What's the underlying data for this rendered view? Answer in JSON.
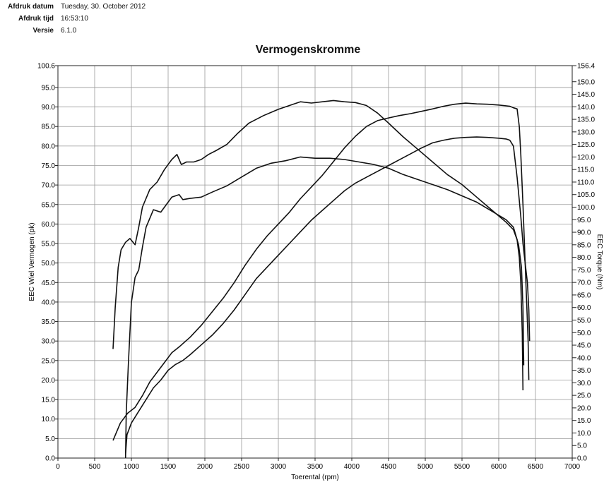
{
  "header": {
    "rows": [
      {
        "label": "Afdruk datum",
        "value": "Tuesday, 30. October 2012"
      },
      {
        "label": "Afdruk tijd",
        "value": "16:53:10"
      },
      {
        "label": "Versie",
        "value": "6.1.0"
      }
    ]
  },
  "chart_data": {
    "type": "line",
    "title": "Vermogenskromme",
    "xlabel": "Toerental (rpm)",
    "ylabel": "EEC Wiel Vermogen (pk)",
    "y2label": "EEC Torque (Nm)",
    "xlim": [
      0,
      7000
    ],
    "ylim": [
      0,
      100.6
    ],
    "y2lim": [
      0,
      156.4
    ],
    "grid": true,
    "xticks": [
      "0",
      "500",
      "1000",
      "1500",
      "2000",
      "2500",
      "3000",
      "3500",
      "4000",
      "4500",
      "5000",
      "5500",
      "6000",
      "6500",
      "7000"
    ],
    "yticks": [
      "0.0",
      "5.0",
      "10.0",
      "15.0",
      "20.0",
      "25.0",
      "30.0",
      "35.0",
      "40.0",
      "45.0",
      "50.0",
      "55.0",
      "60.0",
      "65.0",
      "70.0",
      "75.0",
      "80.0",
      "85.0",
      "90.0",
      "95.0",
      "100.6"
    ],
    "y2ticks": [
      "0.0",
      "5.0",
      "10.0",
      "15.0",
      "20.0",
      "25.0",
      "30.0",
      "35.0",
      "40.0",
      "45.0",
      "50.0",
      "55.0",
      "60.0",
      "65.0",
      "70.0",
      "75.0",
      "80.0",
      "85.0",
      "90.0",
      "95.0",
      "100.0",
      "105.0",
      "110.0",
      "115.0",
      "120.0",
      "125.0",
      "130.0",
      "135.0",
      "140.0",
      "145.0",
      "150.0",
      "156.4"
    ],
    "series": [
      {
        "axis": "y2",
        "color": "#111111",
        "points": [
          [
            750,
            43.5
          ],
          [
            780,
            60
          ],
          [
            820,
            76
          ],
          [
            860,
            83
          ],
          [
            920,
            86
          ],
          [
            980,
            87.5
          ],
          [
            1050,
            85
          ],
          [
            1100,
            92
          ],
          [
            1150,
            100
          ],
          [
            1250,
            107
          ],
          [
            1350,
            110
          ],
          [
            1450,
            115
          ],
          [
            1550,
            119
          ],
          [
            1620,
            121
          ],
          [
            1680,
            117
          ],
          [
            1750,
            118
          ],
          [
            1850,
            118
          ],
          [
            1950,
            119
          ],
          [
            2050,
            121
          ],
          [
            2150,
            122.5
          ],
          [
            2300,
            125
          ],
          [
            2450,
            129.5
          ],
          [
            2600,
            133.5
          ],
          [
            2800,
            136.5
          ],
          [
            3000,
            139
          ],
          [
            3200,
            141
          ],
          [
            3300,
            142
          ],
          [
            3450,
            141.5
          ],
          [
            3600,
            142
          ],
          [
            3750,
            142.5
          ],
          [
            3900,
            142
          ],
          [
            4050,
            141.7
          ],
          [
            4200,
            140.5
          ],
          [
            4350,
            137.5
          ],
          [
            4500,
            133.5
          ],
          [
            4700,
            128
          ],
          [
            4900,
            123
          ],
          [
            5100,
            118
          ],
          [
            5300,
            113
          ],
          [
            5500,
            109
          ],
          [
            5700,
            104
          ],
          [
            5900,
            99
          ],
          [
            6100,
            94
          ],
          [
            6200,
            91
          ],
          [
            6250,
            87
          ],
          [
            6280,
            80
          ],
          [
            6300,
            70
          ],
          [
            6320,
            50
          ],
          [
            6330,
            27
          ]
        ]
      },
      {
        "axis": "y2",
        "color": "#111111",
        "points": [
          [
            920,
            0
          ],
          [
            930,
            18
          ],
          [
            960,
            38
          ],
          [
            1000,
            62
          ],
          [
            1050,
            72
          ],
          [
            1100,
            75
          ],
          [
            1150,
            84
          ],
          [
            1200,
            92
          ],
          [
            1300,
            99
          ],
          [
            1400,
            98
          ],
          [
            1450,
            100
          ],
          [
            1550,
            104
          ],
          [
            1650,
            105
          ],
          [
            1700,
            103
          ],
          [
            1800,
            103.5
          ],
          [
            1950,
            104
          ],
          [
            2100,
            106
          ],
          [
            2300,
            108.5
          ],
          [
            2500,
            112
          ],
          [
            2700,
            115.5
          ],
          [
            2900,
            117.5
          ],
          [
            3100,
            118.5
          ],
          [
            3300,
            120
          ],
          [
            3500,
            119.5
          ],
          [
            3700,
            119.5
          ],
          [
            3900,
            119
          ],
          [
            4100,
            118
          ],
          [
            4300,
            117
          ],
          [
            4500,
            115.5
          ],
          [
            4700,
            113
          ],
          [
            4900,
            111
          ],
          [
            5100,
            109
          ],
          [
            5300,
            107
          ],
          [
            5500,
            104.5
          ],
          [
            5700,
            102
          ],
          [
            5900,
            98.5
          ],
          [
            6100,
            95
          ],
          [
            6200,
            92
          ],
          [
            6270,
            85
          ],
          [
            6310,
            76
          ],
          [
            6330,
            60
          ],
          [
            6340,
            37
          ]
        ]
      },
      {
        "axis": "y",
        "color": "#111111",
        "points": [
          [
            750,
            4.5
          ],
          [
            850,
            9
          ],
          [
            950,
            11.5
          ],
          [
            1050,
            13
          ],
          [
            1150,
            16
          ],
          [
            1250,
            19.5
          ],
          [
            1350,
            22
          ],
          [
            1450,
            24.5
          ],
          [
            1550,
            27
          ],
          [
            1650,
            28.5
          ],
          [
            1800,
            31
          ],
          [
            1950,
            34
          ],
          [
            2100,
            37.5
          ],
          [
            2250,
            41
          ],
          [
            2400,
            45
          ],
          [
            2550,
            49.5
          ],
          [
            2700,
            53.5
          ],
          [
            2850,
            57
          ],
          [
            3000,
            60
          ],
          [
            3150,
            63
          ],
          [
            3300,
            66.5
          ],
          [
            3450,
            69.5
          ],
          [
            3600,
            72.5
          ],
          [
            3750,
            76
          ],
          [
            3900,
            79.5
          ],
          [
            4050,
            82.5
          ],
          [
            4200,
            85
          ],
          [
            4350,
            86.5
          ],
          [
            4500,
            87.2
          ],
          [
            4650,
            87.8
          ],
          [
            4800,
            88.3
          ],
          [
            4950,
            88.9
          ],
          [
            5100,
            89.5
          ],
          [
            5250,
            90.2
          ],
          [
            5400,
            90.7
          ],
          [
            5550,
            91
          ],
          [
            5700,
            90.8
          ],
          [
            5850,
            90.7
          ],
          [
            6000,
            90.5
          ],
          [
            6150,
            90.2
          ],
          [
            6200,
            89.8
          ],
          [
            6250,
            89.5
          ],
          [
            6280,
            85
          ],
          [
            6300,
            78
          ],
          [
            6330,
            65
          ],
          [
            6360,
            50
          ],
          [
            6380,
            40
          ],
          [
            6400,
            30
          ],
          [
            6410,
            20
          ]
        ]
      },
      {
        "axis": "y",
        "color": "#111111",
        "points": [
          [
            920,
            1
          ],
          [
            940,
            6
          ],
          [
            1000,
            9
          ],
          [
            1100,
            12
          ],
          [
            1200,
            15
          ],
          [
            1300,
            18
          ],
          [
            1400,
            20
          ],
          [
            1500,
            22.5
          ],
          [
            1600,
            24
          ],
          [
            1700,
            25
          ],
          [
            1800,
            26.5
          ],
          [
            1950,
            29
          ],
          [
            2100,
            31.5
          ],
          [
            2250,
            34.5
          ],
          [
            2400,
            38
          ],
          [
            2550,
            42
          ],
          [
            2700,
            46
          ],
          [
            2850,
            49
          ],
          [
            3000,
            52
          ],
          [
            3150,
            55
          ],
          [
            3300,
            58
          ],
          [
            3450,
            61
          ],
          [
            3600,
            63.5
          ],
          [
            3750,
            66
          ],
          [
            3900,
            68.5
          ],
          [
            4050,
            70.5
          ],
          [
            4200,
            72
          ],
          [
            4350,
            73.5
          ],
          [
            4500,
            75
          ],
          [
            4650,
            76.5
          ],
          [
            4800,
            78
          ],
          [
            4950,
            79.5
          ],
          [
            5100,
            80.8
          ],
          [
            5250,
            81.5
          ],
          [
            5400,
            82
          ],
          [
            5550,
            82.2
          ],
          [
            5700,
            82.3
          ],
          [
            5850,
            82.2
          ],
          [
            6000,
            82
          ],
          [
            6100,
            81.8
          ],
          [
            6150,
            81.5
          ],
          [
            6200,
            80
          ],
          [
            6250,
            72
          ],
          [
            6300,
            62
          ],
          [
            6330,
            55
          ],
          [
            6360,
            50
          ],
          [
            6390,
            45
          ],
          [
            6410,
            38
          ],
          [
            6420,
            30
          ]
        ]
      }
    ]
  }
}
